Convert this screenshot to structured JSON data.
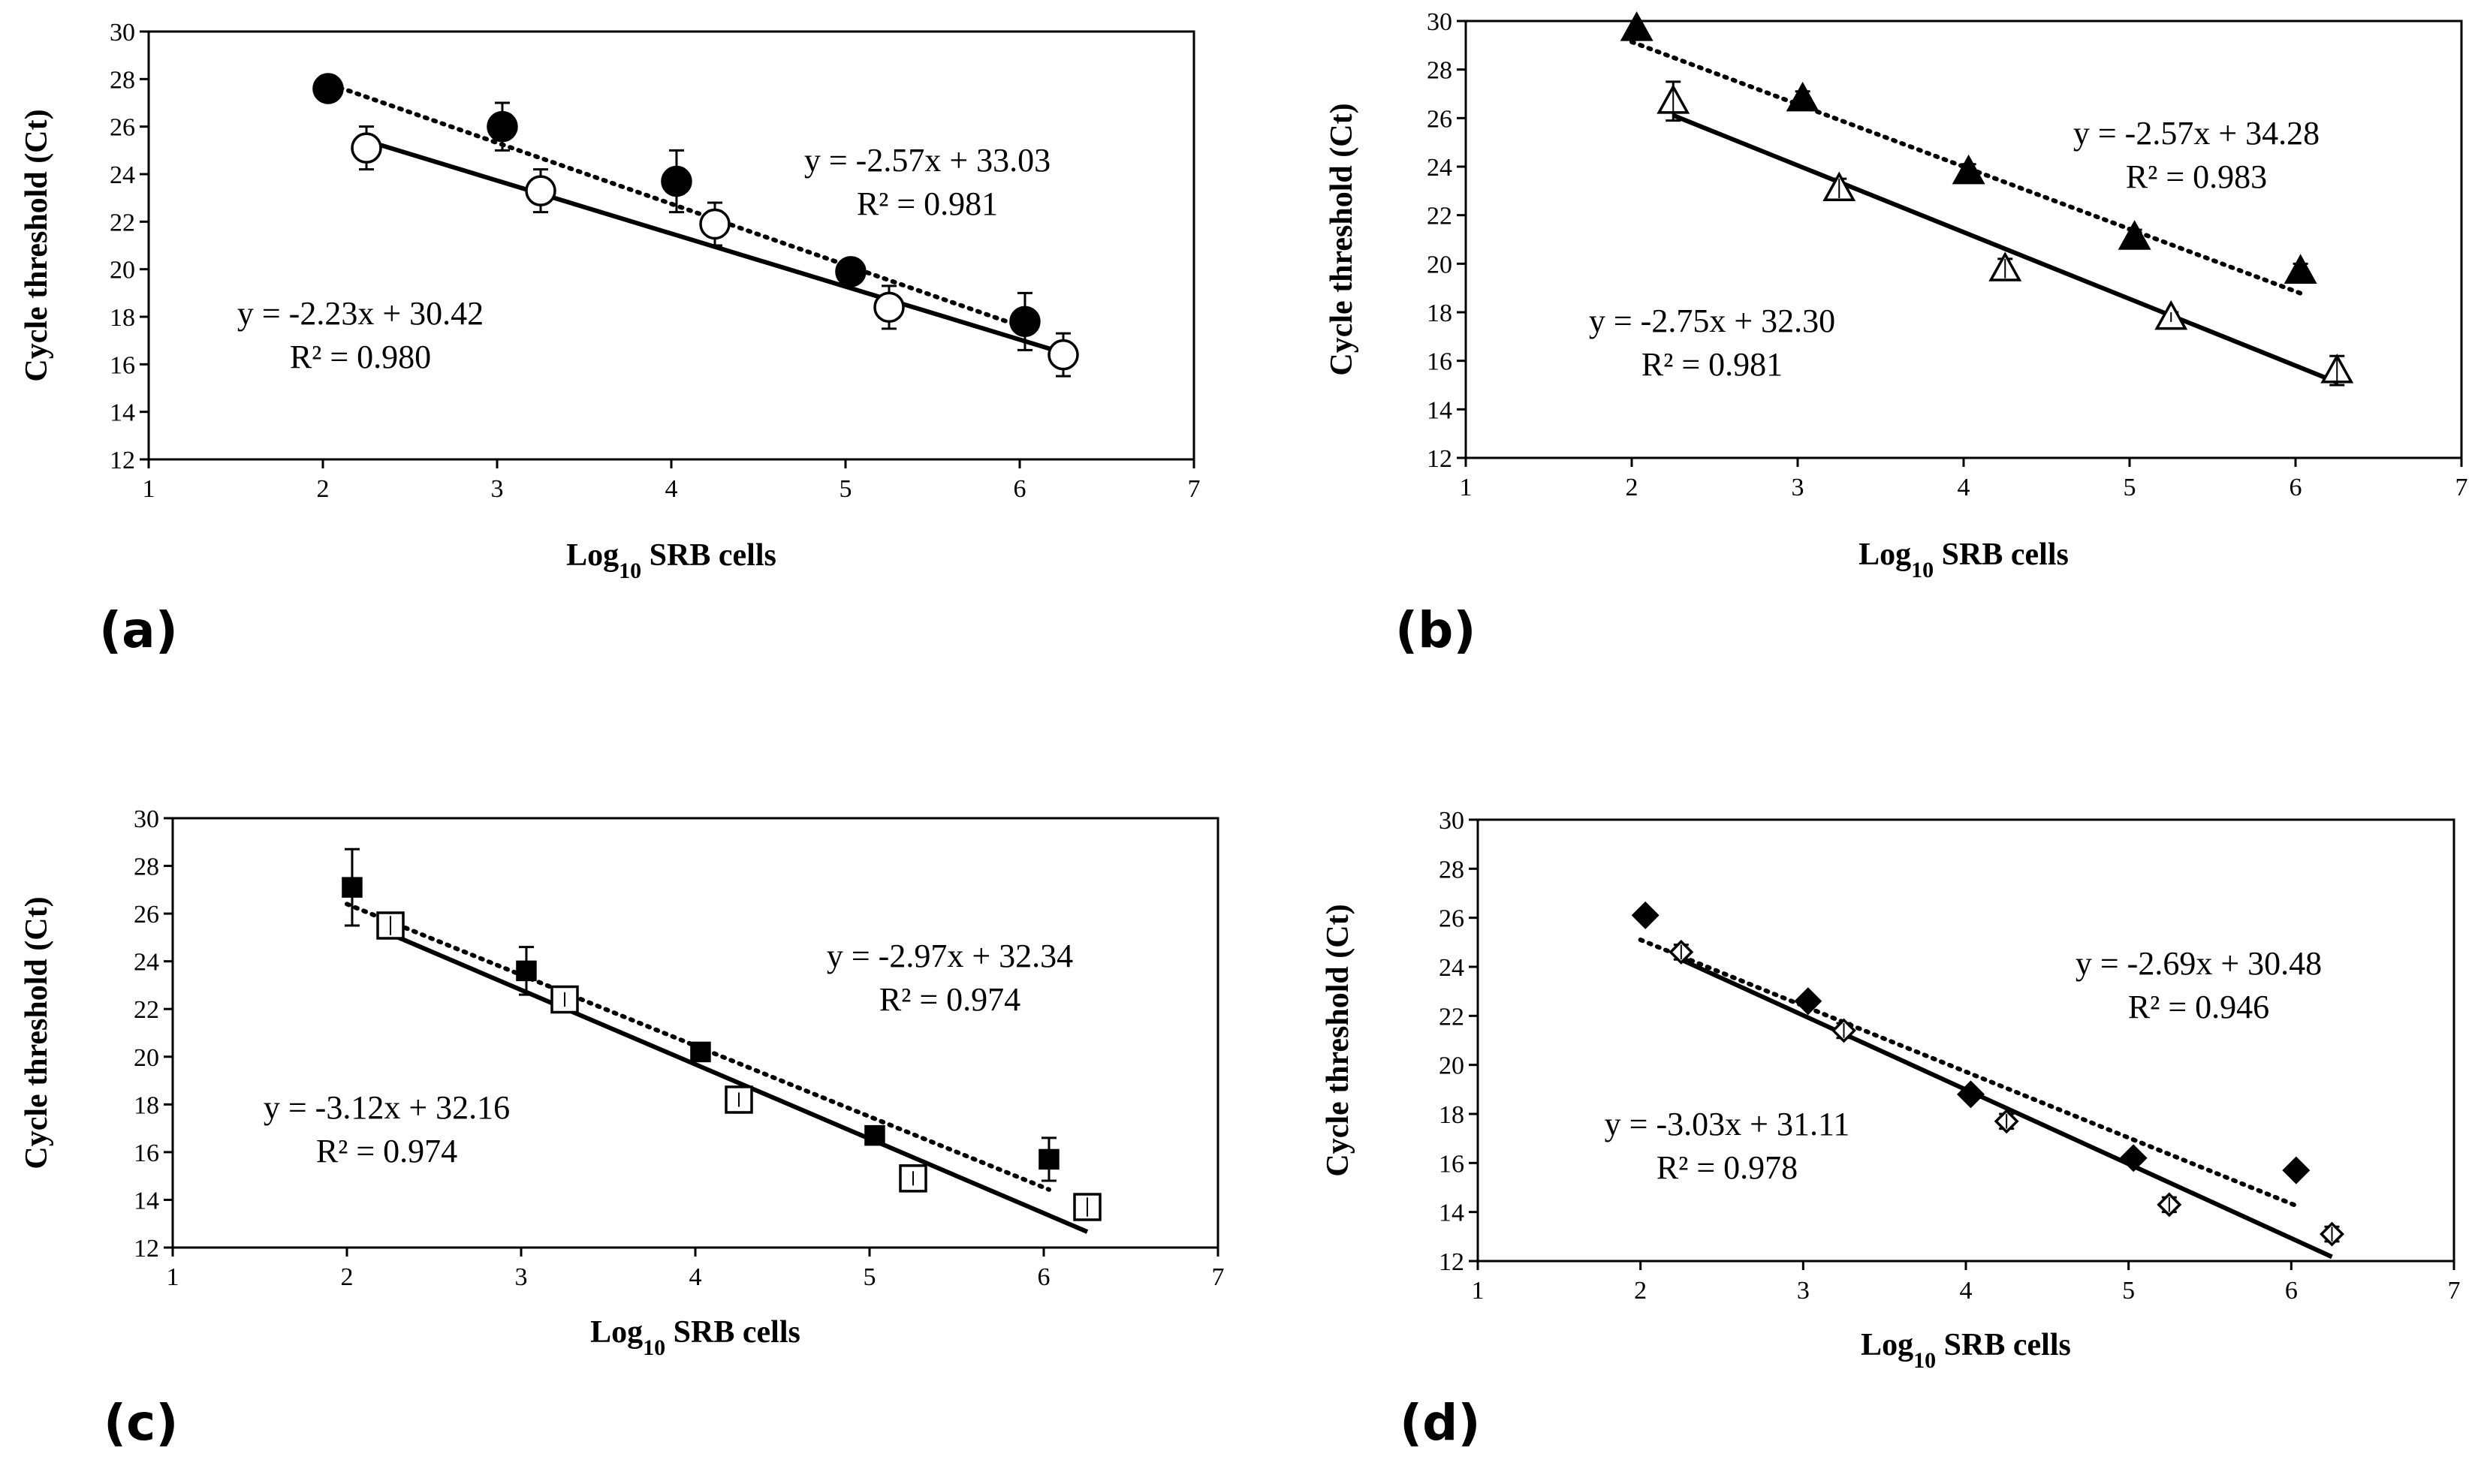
{
  "figure": {
    "background": "#ffffff",
    "ink": "#000000"
  },
  "chart_data": [
    {
      "panel": "(a)",
      "type": "scatter",
      "xlabel": "Log10 SRB cells",
      "xlabel_base": "Log",
      "xlabel_sub": "10",
      "xlabel_rest": " SRB cells",
      "ylabel": "Cycle threshold (Ct)",
      "xlim": [
        1,
        7
      ],
      "ylim": [
        12,
        30
      ],
      "xticks": [
        1,
        2,
        3,
        4,
        5,
        6,
        7
      ],
      "yticks": [
        12,
        14,
        16,
        18,
        20,
        22,
        24,
        26,
        28,
        30
      ],
      "series": [
        {
          "name": "filled",
          "marker": "circle",
          "filled": true,
          "line": "dotted",
          "x": [
            2.03,
            3.03,
            4.03,
            5.03,
            6.03
          ],
          "y": [
            27.6,
            26.0,
            23.7,
            19.9,
            17.8
          ],
          "err": [
            0.3,
            1.0,
            1.3,
            0.3,
            1.2
          ],
          "fit": {
            "slope": -2.57,
            "intercept": 33.03,
            "xrange": [
              2.0,
              6.03
            ]
          },
          "equation": "y = -2.57x + 33.03",
          "r2": "R² = 0.981"
        },
        {
          "name": "open",
          "marker": "circle",
          "filled": false,
          "line": "solid",
          "x": [
            2.25,
            3.25,
            4.25,
            5.25,
            6.25
          ],
          "y": [
            25.1,
            23.3,
            21.9,
            18.4,
            16.4
          ],
          "err": [
            0.9,
            0.9,
            0.9,
            0.9,
            0.9
          ],
          "fit": {
            "slope": -2.23,
            "intercept": 30.42,
            "xrange": [
              2.25,
              6.25
            ]
          },
          "equation": "y = -2.23x + 30.42",
          "r2": "R² = 0.980"
        }
      ]
    },
    {
      "panel": "(b)",
      "type": "scatter",
      "xlabel": "Log10 SRB cells",
      "xlabel_base": "Log",
      "xlabel_sub": "10",
      "xlabel_rest": " SRB cells",
      "ylabel": "Cycle threshold (Ct)",
      "xlim": [
        1,
        7
      ],
      "ylim": [
        12,
        30
      ],
      "xticks": [
        1,
        2,
        3,
        4,
        5,
        6,
        7
      ],
      "yticks": [
        12,
        14,
        16,
        18,
        20,
        22,
        24,
        26,
        28,
        30
      ],
      "series": [
        {
          "name": "filled",
          "marker": "triangle",
          "filled": true,
          "line": "dotted",
          "x": [
            2.03,
            3.03,
            4.03,
            5.03,
            6.03
          ],
          "y": [
            29.7,
            26.8,
            23.8,
            21.1,
            19.7
          ],
          "err": [
            0.3,
            0.3,
            0.3,
            0.3,
            0.3
          ],
          "fit": {
            "slope": -2.57,
            "intercept": 34.28,
            "xrange": [
              2.0,
              6.03
            ]
          },
          "equation": "y = -2.57x + 34.28",
          "r2": "R² = 0.983"
        },
        {
          "name": "open",
          "marker": "triangle",
          "filled": false,
          "line": "solid",
          "x": [
            2.25,
            3.25,
            4.25,
            5.25,
            6.25
          ],
          "y": [
            26.7,
            23.1,
            19.8,
            17.8,
            15.6
          ],
          "err": [
            0.8,
            0.4,
            0.4,
            0.2,
            0.6
          ],
          "fit": {
            "slope": -2.75,
            "intercept": 32.3,
            "xrange": [
              2.25,
              6.25
            ]
          },
          "equation": "y = -2.75x + 32.30",
          "r2": "R² = 0.981"
        }
      ]
    },
    {
      "panel": "(c)",
      "type": "scatter",
      "xlabel": "Log10 SRB cells",
      "xlabel_base": "Log",
      "xlabel_sub": "10",
      "xlabel_rest": " SRB cells",
      "ylabel": "Cycle threshold (Ct)",
      "xlim": [
        1,
        7
      ],
      "ylim": [
        12,
        30
      ],
      "xticks": [
        1,
        2,
        3,
        4,
        5,
        6,
        7
      ],
      "yticks": [
        12,
        14,
        16,
        18,
        20,
        22,
        24,
        26,
        28,
        30
      ],
      "series": [
        {
          "name": "filled",
          "marker": "square",
          "filled": true,
          "line": "dotted",
          "x": [
            2.03,
            3.03,
            4.03,
            5.03,
            6.03
          ],
          "y": [
            27.1,
            23.6,
            20.2,
            16.7,
            15.7
          ],
          "err": [
            1.6,
            1.0,
            0.3,
            0.2,
            0.9
          ],
          "fit": {
            "slope": -2.97,
            "intercept": 32.34,
            "xrange": [
              2.0,
              6.03
            ]
          },
          "equation": "y = -2.97x + 32.34",
          "r2": "R² = 0.974"
        },
        {
          "name": "open",
          "marker": "square",
          "filled": false,
          "line": "solid",
          "x": [
            2.25,
            3.25,
            4.25,
            5.25,
            6.25
          ],
          "y": [
            25.5,
            22.4,
            18.2,
            14.9,
            13.7
          ],
          "err": [
            0.4,
            0.3,
            0.3,
            0.3,
            0.4
          ],
          "fit": {
            "slope": -3.12,
            "intercept": 32.16,
            "xrange": [
              2.25,
              6.25
            ]
          },
          "equation": "y = -3.12x + 32.16",
          "r2": "R² = 0.974"
        }
      ]
    },
    {
      "panel": "(d)",
      "type": "scatter",
      "xlabel": "Log10 SRB cells",
      "xlabel_base": "Log",
      "xlabel_sub": "10",
      "xlabel_rest": " SRB cells",
      "ylabel": "Cycle threshold (Ct)",
      "xlim": [
        1,
        7
      ],
      "ylim": [
        12,
        30
      ],
      "xticks": [
        1,
        2,
        3,
        4,
        5,
        6,
        7
      ],
      "yticks": [
        12,
        14,
        16,
        18,
        20,
        22,
        24,
        26,
        28,
        30
      ],
      "series": [
        {
          "name": "filled",
          "marker": "diamond",
          "filled": true,
          "line": "dotted",
          "x": [
            2.03,
            3.03,
            4.03,
            5.03,
            6.03
          ],
          "y": [
            26.1,
            22.6,
            18.8,
            16.2,
            15.7
          ],
          "err": [
            0.2,
            0.2,
            0.2,
            0.2,
            0.2
          ],
          "fit": {
            "slope": -2.69,
            "intercept": 30.48,
            "xrange": [
              2.0,
              6.03
            ]
          },
          "equation": "y = -2.69x + 30.48",
          "r2": "R² = 0.946"
        },
        {
          "name": "open",
          "marker": "diamond",
          "filled": false,
          "line": "solid",
          "x": [
            2.25,
            3.25,
            4.25,
            5.25,
            6.25
          ],
          "y": [
            24.6,
            21.4,
            17.7,
            14.3,
            13.1
          ],
          "err": [
            0.3,
            0.3,
            0.3,
            0.3,
            0.3
          ],
          "fit": {
            "slope": -3.03,
            "intercept": 31.11,
            "xrange": [
              2.25,
              6.25
            ]
          },
          "equation": "y = -3.03x + 31.11",
          "r2": "R² = 0.978"
        }
      ]
    }
  ]
}
